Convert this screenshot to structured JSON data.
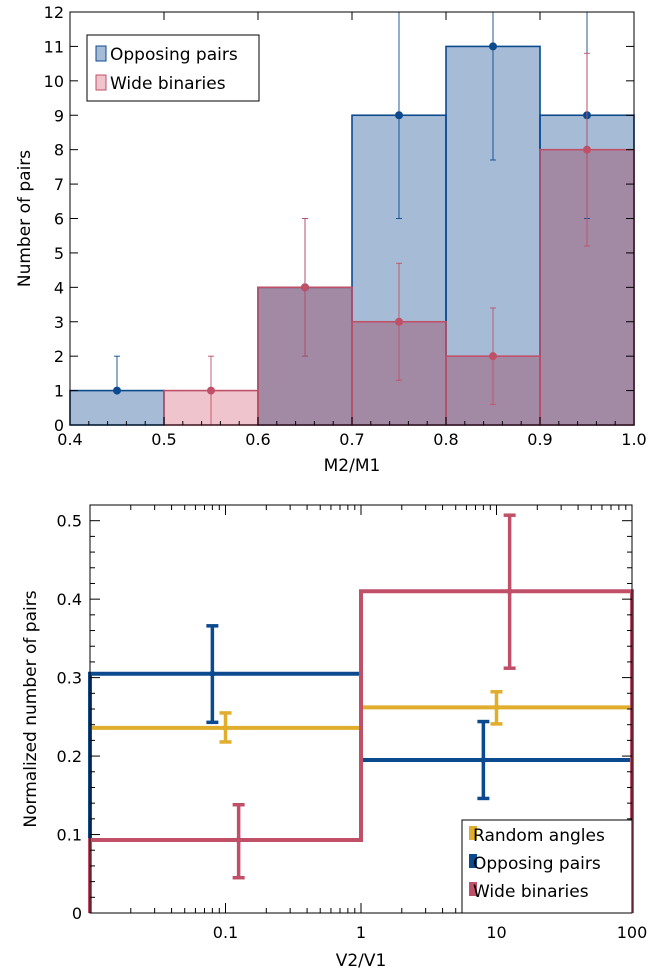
{
  "colors": {
    "blue": "#0b4a8f",
    "blue_fill": "#a6bcd6",
    "red": "#c05068",
    "red_fill": "#f0c4cc",
    "gold": "#e0ae2c",
    "overlap_fill": "#a38aa4"
  },
  "chart_data": [
    {
      "type": "bar",
      "subtype": "histogram",
      "xlabel": "M2/M1",
      "ylabel": "Number of pairs",
      "xlim": [
        0.4,
        1.0
      ],
      "ylim": [
        0,
        12
      ],
      "xticks": [
        "0.4",
        "0.5",
        "0.6",
        "0.7",
        "0.8",
        "0.9",
        "1.0"
      ],
      "yticks": [
        "0",
        "1",
        "2",
        "3",
        "4",
        "5",
        "6",
        "7",
        "8",
        "9",
        "10",
        "11",
        "12"
      ],
      "bin_edges": [
        0.4,
        0.5,
        0.6,
        0.7,
        0.8,
        0.9,
        1.0
      ],
      "legend_position": "top-left",
      "series": [
        {
          "name": "Opposing pairs",
          "values": [
            1,
            0,
            4,
            9,
            11,
            9
          ],
          "err_low": [
            1,
            0,
            2,
            6,
            7.7,
            6
          ],
          "err_high": [
            2,
            0,
            6,
            12,
            12,
            12
          ]
        },
        {
          "name": "Wide binaries",
          "values": [
            0,
            1,
            4,
            3,
            2,
            8
          ],
          "err_low": [
            0,
            0,
            2,
            1.3,
            0.6,
            5.2
          ],
          "err_high": [
            0,
            2,
            6,
            4.7,
            3.4,
            10.8
          ]
        }
      ]
    },
    {
      "type": "line",
      "subtype": "step-histogram",
      "xlabel": "V2/V1",
      "ylabel": "Normalized number of pairs",
      "xscale": "log",
      "xlim": [
        0.01,
        100
      ],
      "ylim": [
        0,
        0.52
      ],
      "xticks": [
        "0.1",
        "1",
        "10",
        "100"
      ],
      "yticks": [
        "0",
        "0.1",
        "0.2",
        "0.3",
        "0.4",
        "0.5"
      ],
      "bin_edges": [
        0.01,
        1,
        100
      ],
      "legend_position": "bottom-right",
      "series": [
        {
          "name": "Random angles",
          "values": [
            0.236,
            0.262
          ],
          "points_x": [
            0.1,
            10
          ],
          "err_low": [
            0.218,
            0.241
          ],
          "err_high": [
            0.255,
            0.282
          ]
        },
        {
          "name": "Opposing pairs",
          "values": [
            0.305,
            0.195
          ],
          "points_x": [
            0.08,
            8
          ],
          "err_low": [
            0.243,
            0.146
          ],
          "err_high": [
            0.366,
            0.244
          ]
        },
        {
          "name": "Wide binaries",
          "values": [
            0.093,
            0.41
          ],
          "points_x": [
            0.125,
            12.5
          ],
          "err_low": [
            0.045,
            0.312
          ],
          "err_high": [
            0.138,
            0.507
          ]
        }
      ]
    }
  ]
}
